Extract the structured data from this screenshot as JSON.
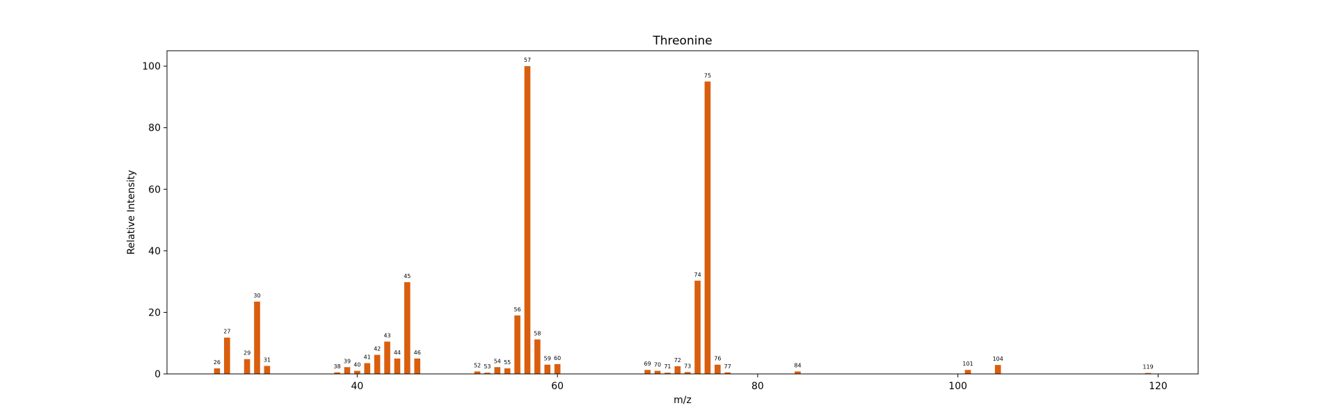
{
  "chart_data": {
    "type": "bar",
    "title": "Threonine",
    "xlabel": "m/z",
    "ylabel": "Relative Intensity",
    "xlim": [
      21,
      124
    ],
    "ylim": [
      0,
      105
    ],
    "xticks": [
      40,
      60,
      80,
      100,
      120
    ],
    "yticks": [
      0,
      20,
      40,
      60,
      80,
      100
    ],
    "bar_color": "#d95f0e",
    "grid": false,
    "bars": [
      {
        "x": 26,
        "y": 1.8
      },
      {
        "x": 27,
        "y": 11.8
      },
      {
        "x": 29,
        "y": 4.8
      },
      {
        "x": 30,
        "y": 23.5
      },
      {
        "x": 31,
        "y": 2.6
      },
      {
        "x": 38,
        "y": 0.5
      },
      {
        "x": 39,
        "y": 2.2
      },
      {
        "x": 40,
        "y": 1.0
      },
      {
        "x": 41,
        "y": 3.5
      },
      {
        "x": 42,
        "y": 6.2
      },
      {
        "x": 43,
        "y": 10.5
      },
      {
        "x": 44,
        "y": 5.0
      },
      {
        "x": 45,
        "y": 29.8
      },
      {
        "x": 46,
        "y": 5.0
      },
      {
        "x": 52,
        "y": 0.8
      },
      {
        "x": 53,
        "y": 0.4
      },
      {
        "x": 54,
        "y": 2.2
      },
      {
        "x": 55,
        "y": 1.8
      },
      {
        "x": 56,
        "y": 19.0
      },
      {
        "x": 57,
        "y": 100.0
      },
      {
        "x": 58,
        "y": 11.2
      },
      {
        "x": 59,
        "y": 3.0
      },
      {
        "x": 60,
        "y": 3.2
      },
      {
        "x": 69,
        "y": 1.3
      },
      {
        "x": 70,
        "y": 1.0
      },
      {
        "x": 71,
        "y": 0.4
      },
      {
        "x": 72,
        "y": 2.5
      },
      {
        "x": 73,
        "y": 0.6
      },
      {
        "x": 74,
        "y": 30.3
      },
      {
        "x": 75,
        "y": 95.0
      },
      {
        "x": 76,
        "y": 3.0
      },
      {
        "x": 77,
        "y": 0.5
      },
      {
        "x": 84,
        "y": 0.8
      },
      {
        "x": 101,
        "y": 1.3
      },
      {
        "x": 104,
        "y": 2.9
      },
      {
        "x": 119,
        "y": 0.3
      }
    ]
  }
}
